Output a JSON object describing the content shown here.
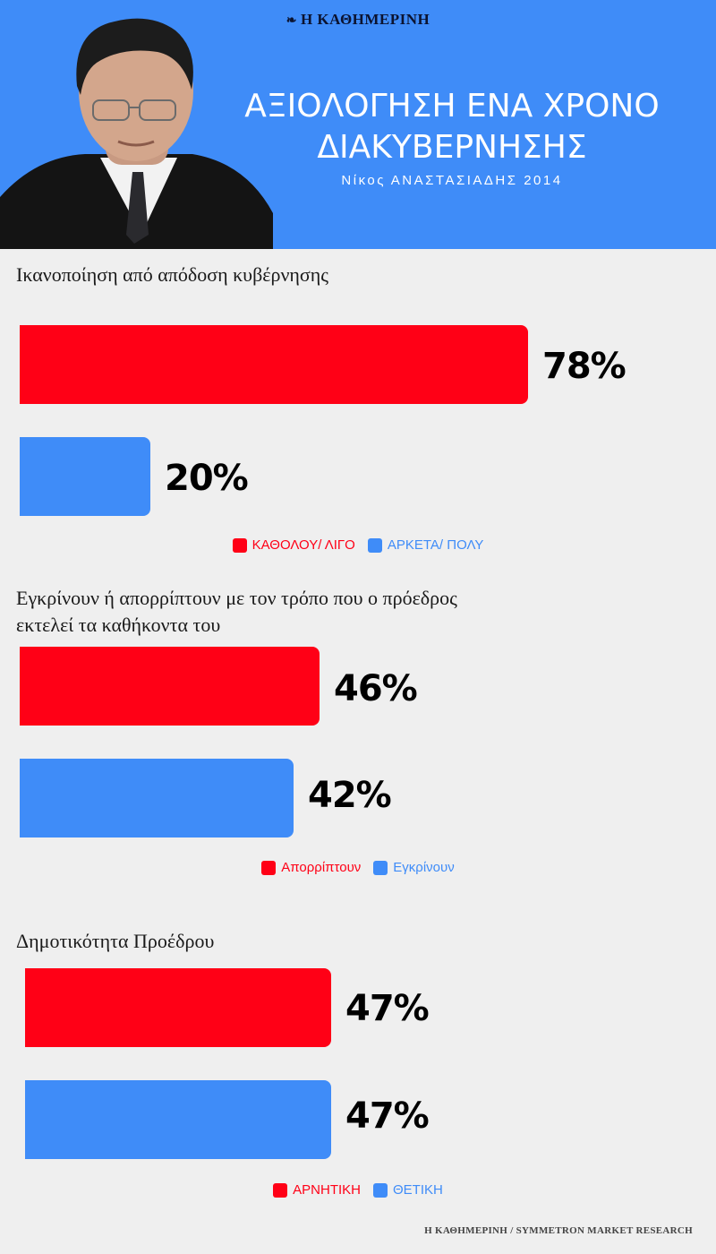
{
  "header": {
    "masthead": "Η ΚΑΘΗΜΕΡΙΝΗ",
    "title_line1": "ΑΞΙΟΛΟΓΗΣΗ ΕΝΑ ΧΡΟΝΟ",
    "title_line2": "ΔΙΑΚΥΒΕΡΝΗΣΗΣ",
    "subtitle": "Νίκος ΑΝΑΣΤΑΣΙΑΔΗΣ 2014"
  },
  "colors": {
    "header_bg": "#3f8cf8",
    "red": "#ff0016",
    "blue": "#3f8cf8"
  },
  "chart_data": [
    {
      "type": "bar",
      "title_lines": [
        "Ικανοποίηση από απόδοση κυβέρνησης"
      ],
      "series": [
        {
          "name": "ΚΑΘΟΛΟΥ/ ΛΙΓΟ",
          "value": 78,
          "label": "78%",
          "color": "#ff0016"
        },
        {
          "name": "ΑΡΚΕΤΑ/ ΠΟΛΥ",
          "value": 20,
          "label": "20%",
          "color": "#3f8cf8"
        }
      ],
      "legend_position": "bottom"
    },
    {
      "type": "bar",
      "title_lines": [
        "Εγκρίνουν ή απορρίπτουν με τον τρόπο που ο πρόεδρος",
        "εκτελεί τα καθήκοντα του"
      ],
      "series": [
        {
          "name": "Απορρίπτουν",
          "value": 46,
          "label": "46%",
          "color": "#ff0016"
        },
        {
          "name": "Εγκρίνουν",
          "value": 42,
          "label": "42%",
          "color": "#3f8cf8"
        }
      ],
      "legend_position": "bottom"
    },
    {
      "type": "bar",
      "title_lines": [
        "Δημοτικότητα Προέδρου"
      ],
      "series": [
        {
          "name": "ΑΡΝΗΤΙΚΗ",
          "value": 47,
          "label": "47%",
          "color": "#ff0016"
        },
        {
          "name": "ΘΕΤΙΚΗ",
          "value": 47,
          "label": "47%",
          "color": "#3f8cf8"
        }
      ],
      "legend_position": "bottom"
    }
  ],
  "footer": {
    "source": "Η ΚΑΘΗΜΕΡΙΝΗ / SYMMETRON MARKET RESEARCH"
  }
}
